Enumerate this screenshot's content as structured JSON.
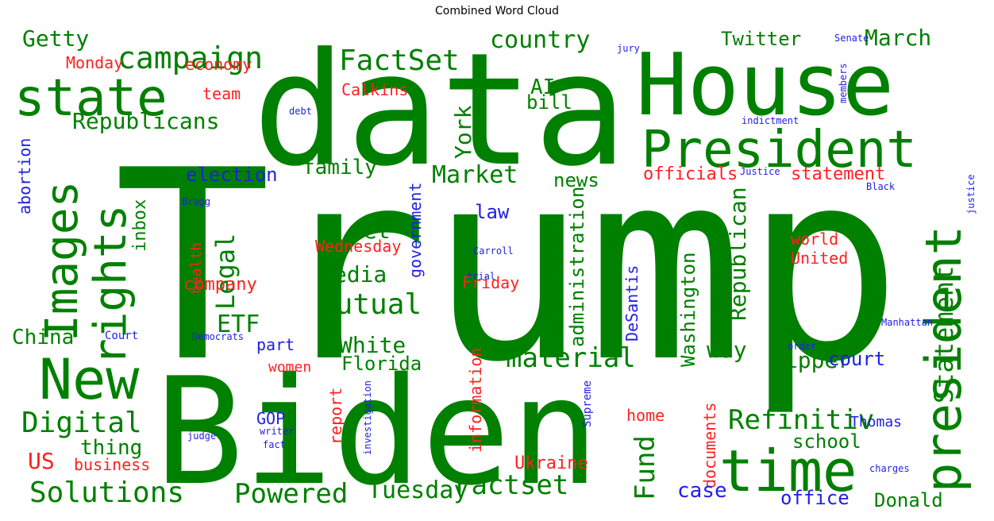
{
  "chart_data": {
    "type": "wordcloud",
    "title": "Combined Word Cloud",
    "colors": {
      "green": "#008000",
      "red": "#ff2020",
      "blue": "#1f1fe6"
    },
    "words": [
      {
        "text": "Trump",
        "weight": 100,
        "color": "green",
        "orient": "h"
      },
      {
        "text": "data",
        "weight": 82,
        "color": "green",
        "orient": "h"
      },
      {
        "text": "Biden",
        "weight": 80,
        "color": "green",
        "orient": "h"
      },
      {
        "text": "House",
        "weight": 60,
        "color": "green",
        "orient": "h"
      },
      {
        "text": "President",
        "weight": 32,
        "color": "green",
        "orient": "h"
      },
      {
        "text": "state",
        "weight": 28,
        "color": "green",
        "orient": "h"
      },
      {
        "text": "time",
        "weight": 30,
        "color": "green",
        "orient": "h"
      },
      {
        "text": "New",
        "weight": 29,
        "color": "green",
        "orient": "h"
      },
      {
        "text": "president",
        "weight": 30,
        "color": "green",
        "orient": "v"
      },
      {
        "text": "Images",
        "weight": 26,
        "color": "green",
        "orient": "v"
      },
      {
        "text": "rights",
        "weight": 24,
        "color": "green",
        "orient": "v"
      },
      {
        "text": "campaign",
        "weight": 17,
        "color": "green",
        "orient": "h"
      },
      {
        "text": "FactSet",
        "weight": 16,
        "color": "green",
        "orient": "h"
      },
      {
        "text": "Factset",
        "weight": 15,
        "color": "green",
        "orient": "h"
      },
      {
        "text": "Mutual",
        "weight": 15,
        "color": "green",
        "orient": "h"
      },
      {
        "text": "material",
        "weight": 15,
        "color": "green",
        "orient": "h"
      },
      {
        "text": "Refinitiv",
        "weight": 15,
        "color": "green",
        "orient": "h"
      },
      {
        "text": "Digital",
        "weight": 15,
        "color": "green",
        "orient": "h"
      },
      {
        "text": "Solutions",
        "weight": 15,
        "color": "green",
        "orient": "h"
      },
      {
        "text": "Powered",
        "weight": 15,
        "color": "green",
        "orient": "h"
      },
      {
        "text": "Fund",
        "weight": 14,
        "color": "green",
        "orient": "v"
      },
      {
        "text": "Statement",
        "weight": 14,
        "color": "green",
        "orient": "v"
      },
      {
        "text": "Legal",
        "weight": 14,
        "color": "green",
        "orient": "v"
      },
      {
        "text": "Market",
        "weight": 13,
        "color": "green",
        "orient": "h"
      },
      {
        "text": "Republicans",
        "weight": 12,
        "color": "green",
        "orient": "h"
      },
      {
        "text": "ETF",
        "weight": 12,
        "color": "green",
        "orient": "h"
      },
      {
        "text": "Tuesday",
        "weight": 12,
        "color": "green",
        "orient": "h"
      },
      {
        "text": "country",
        "weight": 11,
        "color": "green",
        "orient": "h"
      },
      {
        "text": "York",
        "weight": 11,
        "color": "green",
        "orient": "v"
      },
      {
        "text": "Lipper",
        "weight": 11,
        "color": "green",
        "orient": "h"
      },
      {
        "text": "Republican",
        "weight": 11,
        "color": "green",
        "orient": "v"
      },
      {
        "text": "Getty",
        "weight": 10,
        "color": "green",
        "orient": "h"
      },
      {
        "text": "March",
        "weight": 10,
        "color": "green",
        "orient": "h"
      },
      {
        "text": "White",
        "weight": 10,
        "color": "green",
        "orient": "h"
      },
      {
        "text": "media",
        "weight": 10,
        "color": "green",
        "orient": "h"
      },
      {
        "text": "way",
        "weight": 10,
        "color": "green",
        "orient": "h"
      },
      {
        "text": "Get",
        "weight": 10,
        "color": "green",
        "orient": "h"
      },
      {
        "text": "China",
        "weight": 9,
        "color": "green",
        "orient": "h"
      },
      {
        "text": "thing",
        "weight": 9,
        "color": "green",
        "orient": "h"
      },
      {
        "text": "family",
        "weight": 9,
        "color": "green",
        "orient": "h"
      },
      {
        "text": "Twitter",
        "weight": 8,
        "color": "green",
        "orient": "h"
      },
      {
        "text": "AI",
        "weight": 9,
        "color": "green",
        "orient": "h"
      },
      {
        "text": "bill",
        "weight": 8,
        "color": "green",
        "orient": "h"
      },
      {
        "text": "news",
        "weight": 8,
        "color": "green",
        "orient": "h"
      },
      {
        "text": "school",
        "weight": 8,
        "color": "green",
        "orient": "h"
      },
      {
        "text": "Donald",
        "weight": 8,
        "color": "green",
        "orient": "h"
      },
      {
        "text": "Florida",
        "weight": 8,
        "color": "green",
        "orient": "h"
      },
      {
        "text": "administration",
        "weight": 8,
        "color": "green",
        "orient": "v"
      },
      {
        "text": "Washington",
        "weight": 8,
        "color": "green",
        "orient": "v"
      },
      {
        "text": "inbox",
        "weight": 7,
        "color": "green",
        "orient": "v"
      },
      {
        "text": "US",
        "weight": 10,
        "color": "red",
        "orient": "h"
      },
      {
        "text": "company",
        "weight": 8,
        "color": "red",
        "orient": "h"
      },
      {
        "text": "statement",
        "weight": 8,
        "color": "red",
        "orient": "h"
      },
      {
        "text": "officials",
        "weight": 8,
        "color": "red",
        "orient": "h"
      },
      {
        "text": "Ukraine",
        "weight": 7,
        "color": "red",
        "orient": "h"
      },
      {
        "text": "Calkins",
        "weight": 7,
        "color": "red",
        "orient": "h"
      },
      {
        "text": "economy",
        "weight": 7,
        "color": "red",
        "orient": "h"
      },
      {
        "text": "Monday",
        "weight": 7,
        "color": "red",
        "orient": "h"
      },
      {
        "text": "team",
        "weight": 7,
        "color": "red",
        "orient": "h"
      },
      {
        "text": "Wednesday",
        "weight": 7,
        "color": "red",
        "orient": "h"
      },
      {
        "text": "Friday",
        "weight": 7,
        "color": "red",
        "orient": "h"
      },
      {
        "text": "world",
        "weight": 7,
        "color": "red",
        "orient": "h"
      },
      {
        "text": "United",
        "weight": 7,
        "color": "red",
        "orient": "h"
      },
      {
        "text": "women",
        "weight": 7,
        "color": "red",
        "orient": "h"
      },
      {
        "text": "business",
        "weight": 7,
        "color": "red",
        "orient": "h"
      },
      {
        "text": "home",
        "weight": 7,
        "color": "red",
        "orient": "h"
      },
      {
        "text": "report",
        "weight": 7,
        "color": "red",
        "orient": "v"
      },
      {
        "text": "information",
        "weight": 7,
        "color": "red",
        "orient": "v"
      },
      {
        "text": "documents",
        "weight": 7,
        "color": "red",
        "orient": "v"
      },
      {
        "text": "health",
        "weight": 6,
        "color": "red",
        "orient": "v"
      },
      {
        "text": "election",
        "weight": 8,
        "color": "blue",
        "orient": "h"
      },
      {
        "text": "law",
        "weight": 8,
        "color": "blue",
        "orient": "h"
      },
      {
        "text": "court",
        "weight": 8,
        "color": "blue",
        "orient": "h"
      },
      {
        "text": "case",
        "weight": 8,
        "color": "blue",
        "orient": "h"
      },
      {
        "text": "office",
        "weight": 8,
        "color": "blue",
        "orient": "h"
      },
      {
        "text": "part",
        "weight": 7,
        "color": "blue",
        "orient": "h"
      },
      {
        "text": "GOP",
        "weight": 7,
        "color": "blue",
        "orient": "h"
      },
      {
        "text": "abortion",
        "weight": 7,
        "color": "blue",
        "orient": "v"
      },
      {
        "text": "government",
        "weight": 7,
        "color": "blue",
        "orient": "v"
      },
      {
        "text": "DeSantis",
        "weight": 7,
        "color": "blue",
        "orient": "v"
      },
      {
        "text": "Thomas",
        "weight": 6,
        "color": "blue",
        "orient": "h"
      },
      {
        "text": "Court",
        "weight": 5,
        "color": "blue",
        "orient": "h"
      },
      {
        "text": "Senate",
        "weight": 4,
        "color": "blue",
        "orient": "h"
      },
      {
        "text": "jury",
        "weight": 4,
        "color": "blue",
        "orient": "h"
      },
      {
        "text": "debt",
        "weight": 4,
        "color": "blue",
        "orient": "h"
      },
      {
        "text": "indictment",
        "weight": 4,
        "color": "blue",
        "orient": "h"
      },
      {
        "text": "Justice",
        "weight": 4,
        "color": "blue",
        "orient": "h"
      },
      {
        "text": "Black",
        "weight": 4,
        "color": "blue",
        "orient": "h"
      },
      {
        "text": "Bragg",
        "weight": 4,
        "color": "blue",
        "orient": "h"
      },
      {
        "text": "trial",
        "weight": 4,
        "color": "blue",
        "orient": "h"
      },
      {
        "text": "Carroll",
        "weight": 4,
        "color": "blue",
        "orient": "h"
      },
      {
        "text": "Democrats",
        "weight": 4,
        "color": "blue",
        "orient": "h"
      },
      {
        "text": "Manhattan",
        "weight": 4,
        "color": "blue",
        "orient": "h"
      },
      {
        "text": "order",
        "weight": 4,
        "color": "blue",
        "orient": "h"
      },
      {
        "text": "judge",
        "weight": 4,
        "color": "blue",
        "orient": "h"
      },
      {
        "text": "writer",
        "weight": 4,
        "color": "blue",
        "orient": "h"
      },
      {
        "text": "fact",
        "weight": 4,
        "color": "blue",
        "orient": "h"
      },
      {
        "text": "charges",
        "weight": 4,
        "color": "blue",
        "orient": "h"
      },
      {
        "text": "members",
        "weight": 4,
        "color": "blue",
        "orient": "v"
      },
      {
        "text": "justice",
        "weight": 4,
        "color": "blue",
        "orient": "v"
      },
      {
        "text": "investigation",
        "weight": 4,
        "color": "blue",
        "orient": "v"
      },
      {
        "text": "Supreme",
        "weight": 4,
        "color": "blue",
        "orient": "v"
      }
    ]
  }
}
